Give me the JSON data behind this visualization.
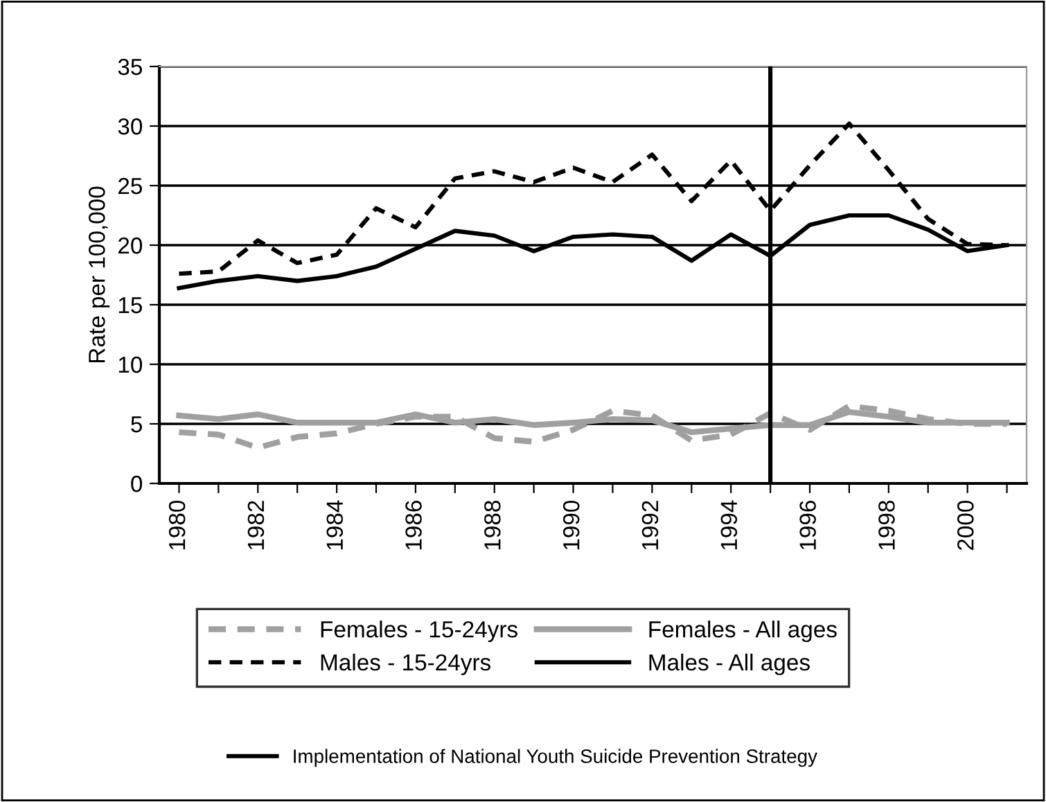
{
  "chart_data": {
    "type": "line",
    "ylabel": "Rate per 100,000",
    "x": [
      1980,
      1981,
      1982,
      1983,
      1984,
      1985,
      1986,
      1987,
      1988,
      1989,
      1990,
      1991,
      1992,
      1993,
      1994,
      1995,
      1996,
      1997,
      1998,
      1999,
      2000,
      2001
    ],
    "xlim": [
      1979.5,
      2001.5
    ],
    "xticks": [
      1980,
      {
        "value": 1981,
        "label": null
      },
      1982,
      {
        "value": 1983,
        "label": null
      },
      1984,
      {
        "value": 1985,
        "label": null
      },
      1986,
      {
        "value": 1987,
        "label": null
      },
      1988,
      {
        "value": 1989,
        "label": null
      },
      1990,
      {
        "value": 1991,
        "label": null
      },
      1992,
      {
        "value": 1993,
        "label": null
      },
      1994,
      {
        "value": 1995,
        "label": null
      },
      1996,
      {
        "value": 1997,
        "label": null
      },
      1998,
      {
        "value": 1999,
        "label": null
      },
      2000,
      {
        "value": 2001,
        "label": null
      }
    ],
    "ylim": [
      0,
      35
    ],
    "yticks": [
      0,
      5,
      10,
      15,
      20,
      25,
      30,
      35
    ],
    "grid": "y",
    "legend": "bottom",
    "marker": "none",
    "series": [
      {
        "name": "Females - 15-24yrs",
        "color": "#a0a0a0",
        "line_style": "dashed",
        "values": [
          4.3,
          4.1,
          3.0,
          3.9,
          4.2,
          5.0,
          5.6,
          5.6,
          3.8,
          3.5,
          4.5,
          6.1,
          5.7,
          3.6,
          4.1,
          5.9,
          4.5,
          6.5,
          6.1,
          5.4,
          5.0,
          5.0
        ]
      },
      {
        "name": "Females - All ages",
        "color": "#a0a0a0",
        "line_style": "solid",
        "values": [
          5.7,
          5.4,
          5.8,
          5.1,
          5.1,
          5.1,
          5.8,
          5.1,
          5.4,
          4.9,
          5.1,
          5.4,
          5.3,
          4.3,
          4.6,
          4.9,
          4.9,
          6.0,
          5.6,
          5.1,
          5.1,
          5.1
        ]
      },
      {
        "name": "Males - 15-24yrs",
        "color": "#000000",
        "line_style": "dashed",
        "values": [
          17.6,
          17.8,
          20.4,
          18.5,
          19.2,
          23.1,
          21.5,
          25.6,
          26.2,
          25.3,
          26.5,
          25.3,
          27.6,
          23.7,
          27.1,
          22.9,
          26.7,
          30.2,
          26.3,
          22.2,
          20.1,
          20.0
        ]
      },
      {
        "name": "Males - All ages",
        "color": "#000000",
        "line_style": "solid",
        "values": [
          16.4,
          17.0,
          17.4,
          17.0,
          17.4,
          18.2,
          19.7,
          21.2,
          20.8,
          19.5,
          20.7,
          20.9,
          20.7,
          18.7,
          20.9,
          19.1,
          21.7,
          22.5,
          22.5,
          21.3,
          19.5,
          20.0
        ]
      }
    ],
    "ref_lines": [
      {
        "axis": "x",
        "value": 1995,
        "label": "Implementation of National Youth Suicide Prevention Strategy",
        "color": "#000000",
        "line_style": "solid"
      }
    ]
  }
}
